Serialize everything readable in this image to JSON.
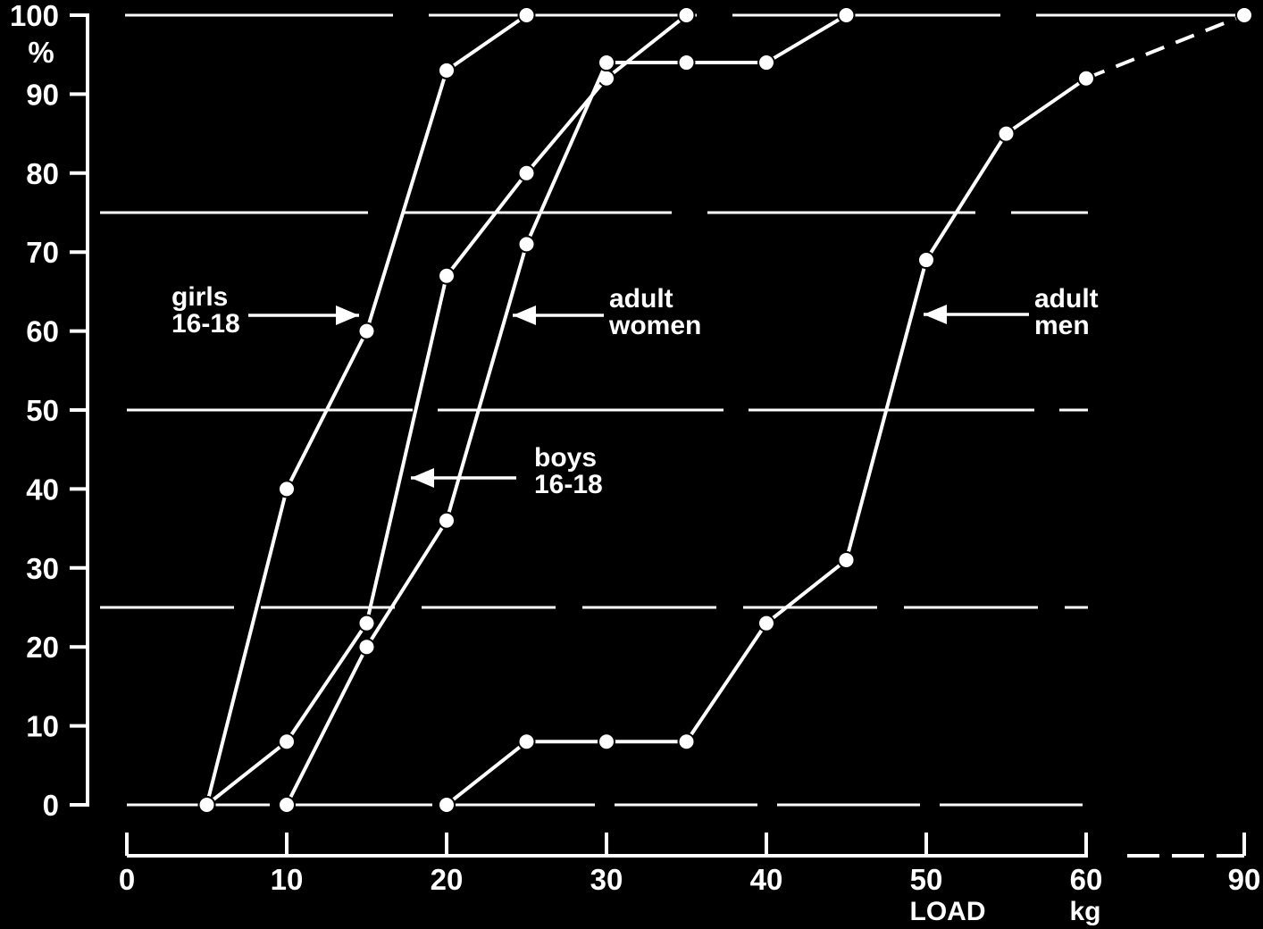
{
  "chart_data": {
    "type": "line",
    "xlabel": "LOAD",
    "xunit": "kg",
    "ylabel": "%",
    "x_ticks": [
      "0",
      "10",
      "20",
      "30",
      "40",
      "50",
      "60",
      "90"
    ],
    "y_ticks": [
      "0",
      "10",
      "20",
      "30",
      "40",
      "50",
      "60",
      "70",
      "80",
      "90",
      "100"
    ],
    "ylim": [
      0,
      100
    ],
    "x_axis_break": "between 60 and 90 (dashed)",
    "grid": "dashed horizontal reference lines at 0, 25, 50, 75 and 100 %",
    "series": [
      {
        "name": "girls 16-18",
        "label_lines": [
          "girls",
          "16-18"
        ],
        "points": [
          [
            5,
            0
          ],
          [
            10,
            40
          ],
          [
            15,
            60
          ],
          [
            20,
            93
          ],
          [
            25,
            100
          ]
        ]
      },
      {
        "name": "boys 16-18",
        "label_lines": [
          "boys",
          "16-18"
        ],
        "points": [
          [
            5,
            0
          ],
          [
            10,
            8
          ],
          [
            15,
            23
          ],
          [
            20,
            67
          ],
          [
            25,
            80
          ],
          [
            30,
            92
          ],
          [
            35,
            100
          ]
        ]
      },
      {
        "name": "adult women",
        "label_lines": [
          "adult",
          "women"
        ],
        "points": [
          [
            10,
            0
          ],
          [
            15,
            20
          ],
          [
            20,
            36
          ],
          [
            25,
            71
          ],
          [
            30,
            94
          ],
          [
            35,
            94
          ],
          [
            40,
            94
          ],
          [
            45,
            100
          ]
        ]
      },
      {
        "name": "adult men",
        "label_lines": [
          "adult",
          "men"
        ],
        "points": [
          [
            20,
            0
          ],
          [
            25,
            8
          ],
          [
            30,
            8
          ],
          [
            35,
            8
          ],
          [
            40,
            23
          ],
          [
            45,
            31
          ],
          [
            50,
            69
          ],
          [
            55,
            85
          ],
          [
            60,
            92
          ],
          [
            90,
            100
          ]
        ]
      }
    ]
  }
}
